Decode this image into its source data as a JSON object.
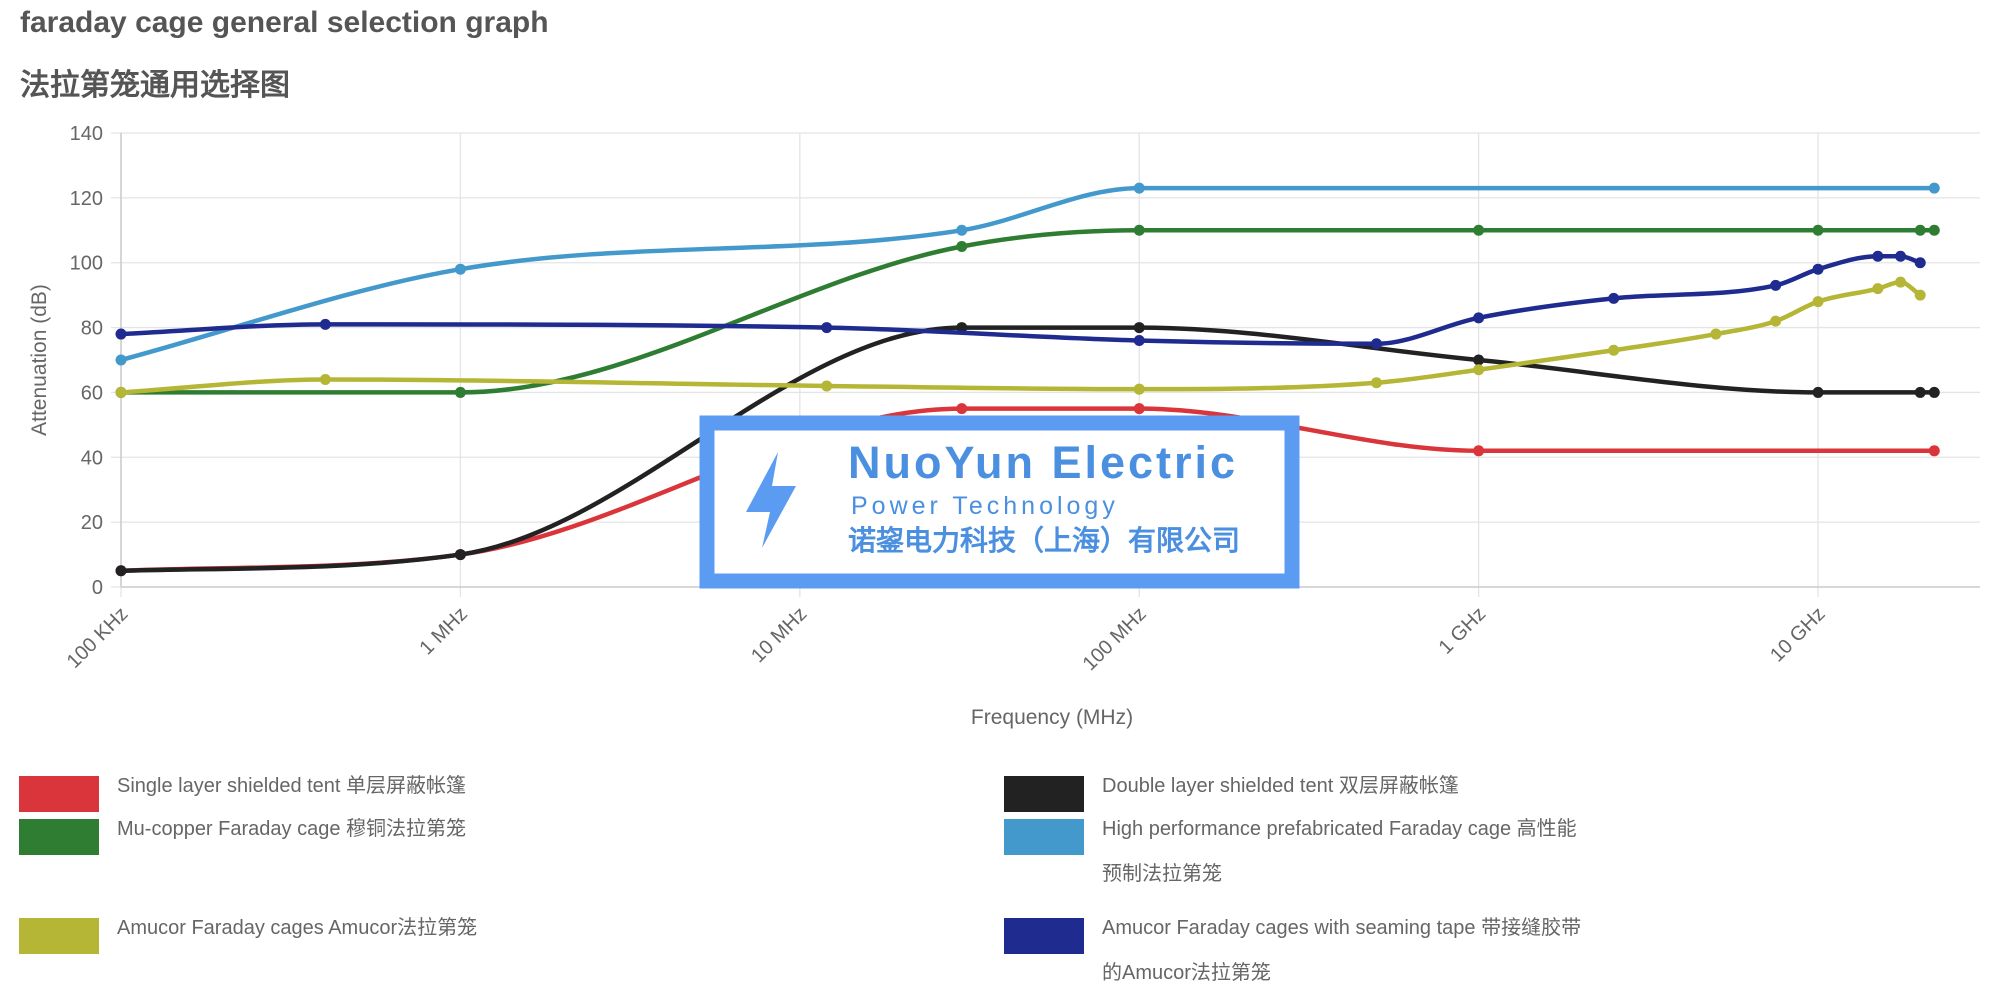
{
  "chart_data": {
    "type": "line",
    "title": "faraday cage general selection graph",
    "subtitle": "法拉第笼通用选择图",
    "x_label": "Frequency (MHz)",
    "y_label": "Attenuation (dB)",
    "log_x": true,
    "grid": true,
    "xlim": [
      0.1,
      30000
    ],
    "xticks": [
      {
        "value": 0.1,
        "label": "100 KHz"
      },
      {
        "value": 1,
        "label": "1 MHz"
      },
      {
        "value": 10,
        "label": "10 MHz"
      },
      {
        "value": 100,
        "label": "100 MHz"
      },
      {
        "value": 1000,
        "label": "1 GHz"
      },
      {
        "value": 10000,
        "label": "10 GHz"
      }
    ],
    "ylim": [
      0,
      140
    ],
    "yticks": [
      0,
      20,
      40,
      60,
      80,
      100,
      120,
      140
    ],
    "series": [
      {
        "name": "Single layer shielded tent 单层屏蔽帐篷",
        "color": "#d9353a",
        "x": [
          0.1,
          1,
          30,
          100,
          1000,
          22000
        ],
        "values": [
          5,
          10,
          55,
          55,
          42,
          42
        ]
      },
      {
        "name": "Double layer shielded tent 双层屏蔽帐篷",
        "color": "#222222",
        "x": [
          0.1,
          1,
          30,
          100,
          1000,
          10000,
          20000,
          22000
        ],
        "values": [
          5,
          10,
          80,
          80,
          70,
          60,
          60,
          60
        ]
      },
      {
        "name": "Mu-copper Faraday cage 穆铜法拉第笼",
        "color": "#2e7d32",
        "x": [
          0.1,
          1,
          30,
          100,
          1000,
          10000,
          20000,
          22000
        ],
        "values": [
          60,
          60,
          105,
          110,
          110,
          110,
          110,
          110
        ]
      },
      {
        "name": "High performance prefabricated Faraday cage 高性能预制法拉第笼",
        "color": "#4499cc",
        "x": [
          0.1,
          1,
          30,
          100,
          22000
        ],
        "values": [
          70,
          98,
          110,
          123,
          123
        ]
      },
      {
        "name": "Amucor Faraday cages Amucor法拉第笼",
        "color": "#b5b536",
        "x": [
          0.1,
          0.4,
          12,
          100,
          500,
          1000,
          2500,
          5000,
          7500,
          10000,
          15000,
          17500,
          20000
        ],
        "values": [
          60,
          64,
          62,
          61,
          63,
          67,
          73,
          78,
          82,
          88,
          92,
          94,
          90
        ]
      },
      {
        "name": "Amucor Faraday cages with seaming tape 带接缝胶带的Amucor法拉第笼",
        "color": "#1f2b8f",
        "x": [
          0.1,
          0.4,
          12,
          100,
          500,
          1000,
          2500,
          7500,
          10000,
          15000,
          17500,
          20000
        ],
        "values": [
          78,
          81,
          80,
          76,
          75,
          83,
          89,
          93,
          98,
          102,
          102,
          100
        ]
      }
    ]
  },
  "watermark": {
    "title": "NuoYun Electric",
    "subtitle": "Power Technology",
    "company": "诺鋆电力科技（上海）有限公司"
  }
}
